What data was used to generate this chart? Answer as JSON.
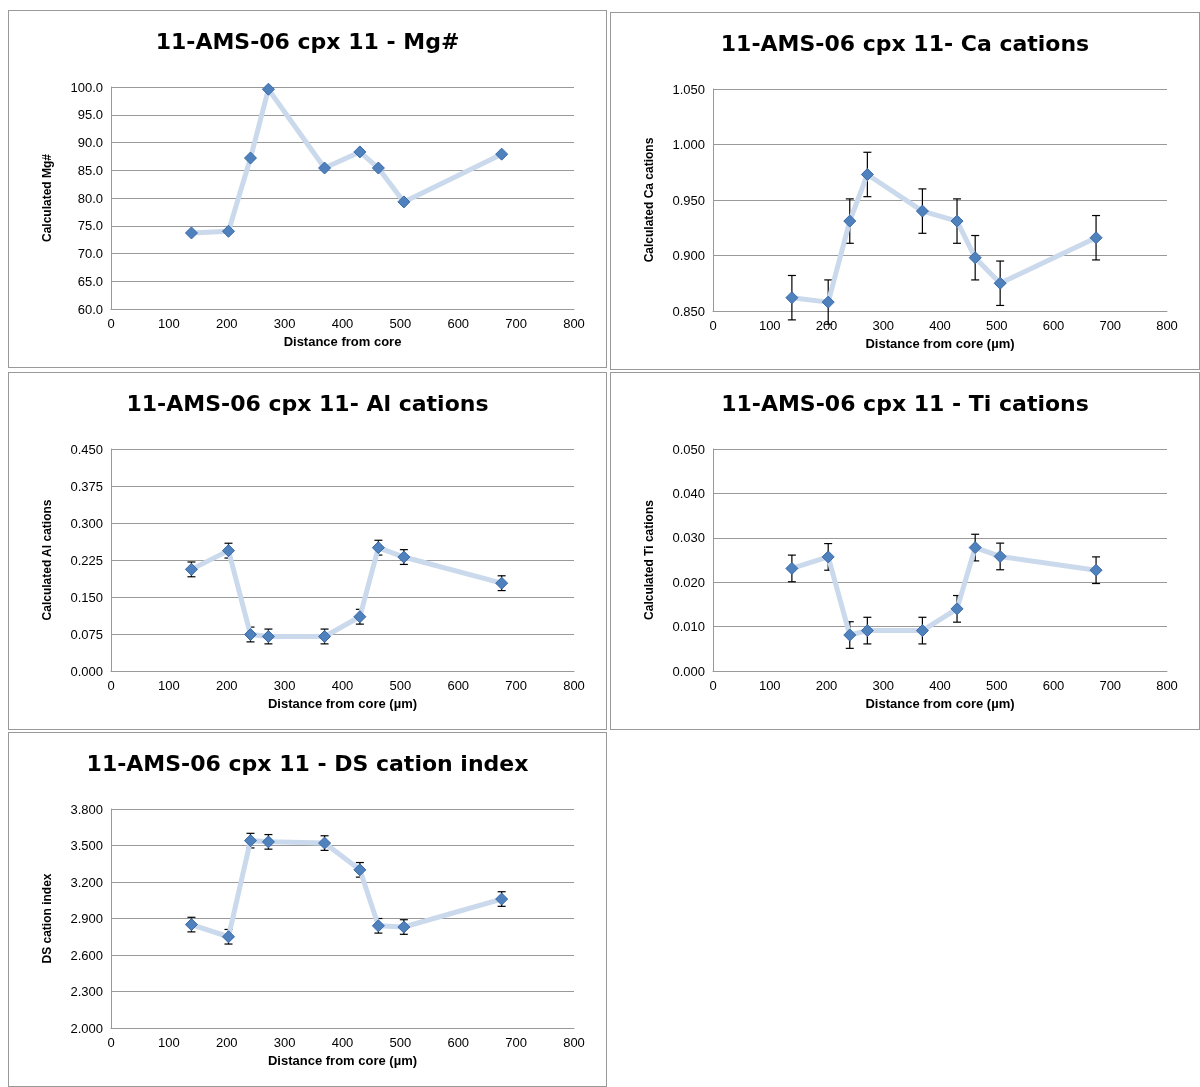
{
  "chart_data": [
    {
      "type": "line",
      "title": "11-AMS-06 cpx 11 - Mg#",
      "xlabel": "Distance from core",
      "ylabel": "Calculated Mg#",
      "x": [
        139,
        203,
        241,
        272,
        369,
        430,
        462,
        506,
        675
      ],
      "series": [
        {
          "color": "#4f81bd",
          "values": [
            73.7,
            74.0,
            87.2,
            99.6,
            85.4,
            88.3,
            85.4,
            79.3,
            87.9
          ]
        }
      ],
      "xlim": [
        0,
        800
      ],
      "xticks": [
        0,
        100,
        200,
        300,
        400,
        500,
        600,
        700,
        800
      ],
      "ylim": [
        60,
        100
      ],
      "yticks": [
        {
          "value": 60,
          "label": "60.0"
        },
        {
          "value": 65,
          "label": "65.0"
        },
        {
          "value": 70,
          "label": "70.0"
        },
        {
          "value": 75,
          "label": "75.0"
        },
        {
          "value": 80,
          "label": "80.0"
        },
        {
          "value": 85,
          "label": "85.0"
        },
        {
          "value": 90,
          "label": "90.0"
        },
        {
          "value": 95,
          "label": "95.0"
        },
        {
          "value": 100,
          "label": "100.0"
        }
      ],
      "grid": "y",
      "marker": "diamond"
    },
    {
      "type": "line",
      "title": "11-AMS-06 cpx 11- Ca cations",
      "xlabel": "Distance from core (µm)",
      "ylabel": "Calculated Ca cations",
      "x": [
        139,
        203,
        241,
        272,
        369,
        430,
        462,
        506,
        675
      ],
      "series": [
        {
          "color": "#4f81bd",
          "values": [
            0.862,
            0.858,
            0.931,
            0.973,
            0.94,
            0.931,
            0.898,
            0.875,
            0.916
          ],
          "errors": [
            0.02,
            0.02,
            0.02,
            0.02,
            0.02,
            0.02,
            0.02,
            0.02,
            0.02
          ]
        }
      ],
      "xlim": [
        0,
        800
      ],
      "xticks": [
        0,
        100,
        200,
        300,
        400,
        500,
        600,
        700,
        800
      ],
      "ylim": [
        0.85,
        1.05
      ],
      "yticks": [
        {
          "value": 0.85,
          "label": "0.850"
        },
        {
          "value": 0.9,
          "label": "0.900"
        },
        {
          "value": 0.95,
          "label": "0.950"
        },
        {
          "value": 1.0,
          "label": "1.000"
        },
        {
          "value": 1.05,
          "label": "1.050"
        }
      ],
      "grid": "y",
      "marker": "diamond"
    },
    {
      "type": "line",
      "title": "11-AMS-06 cpx 11- Al cations",
      "xlabel": "Distance from core (µm)",
      "ylabel": "Calculated Al cations",
      "x": [
        139,
        203,
        241,
        272,
        369,
        430,
        462,
        506,
        675
      ],
      "series": [
        {
          "color": "#4f81bd",
          "values": [
            0.206,
            0.244,
            0.074,
            0.07,
            0.07,
            0.11,
            0.25,
            0.231,
            0.178
          ],
          "errors": [
            0.015,
            0.015,
            0.015,
            0.015,
            0.015,
            0.015,
            0.015,
            0.015,
            0.015
          ]
        }
      ],
      "xlim": [
        0,
        800
      ],
      "xticks": [
        0,
        100,
        200,
        300,
        400,
        500,
        600,
        700,
        800
      ],
      "ylim": [
        0,
        0.45
      ],
      "yticks": [
        {
          "value": 0,
          "label": "0.000"
        },
        {
          "value": 0.075,
          "label": "0.075"
        },
        {
          "value": 0.15,
          "label": "0.150"
        },
        {
          "value": 0.225,
          "label": "0.225"
        },
        {
          "value": 0.3,
          "label": "0.300"
        },
        {
          "value": 0.375,
          "label": "0.375"
        },
        {
          "value": 0.45,
          "label": "0.450"
        }
      ],
      "grid": "y",
      "marker": "diamond"
    },
    {
      "type": "line",
      "title": "11-AMS-06 cpx 11 - Ti cations",
      "xlabel": "Distance from core (µm)",
      "ylabel": "Calculated Ti cations",
      "x": [
        139,
        203,
        241,
        272,
        369,
        430,
        462,
        506,
        675
      ],
      "series": [
        {
          "color": "#4f81bd",
          "values": [
            0.0231,
            0.0257,
            0.0081,
            0.0091,
            0.0091,
            0.014,
            0.0278,
            0.0258,
            0.0227
          ],
          "errors": [
            0.003,
            0.003,
            0.003,
            0.003,
            0.003,
            0.003,
            0.003,
            0.003,
            0.003
          ]
        }
      ],
      "xlim": [
        0,
        800
      ],
      "xticks": [
        0,
        100,
        200,
        300,
        400,
        500,
        600,
        700,
        800
      ],
      "ylim": [
        0,
        0.05
      ],
      "yticks": [
        {
          "value": 0,
          "label": "0.000"
        },
        {
          "value": 0.01,
          "label": "0.010"
        },
        {
          "value": 0.02,
          "label": "0.020"
        },
        {
          "value": 0.03,
          "label": "0.030"
        },
        {
          "value": 0.04,
          "label": "0.040"
        },
        {
          "value": 0.05,
          "label": "0.050"
        }
      ],
      "grid": "y",
      "marker": "diamond"
    },
    {
      "type": "line",
      "title": "11-AMS-06 cpx 11 - DS cation index",
      "xlabel": "Distance from core (µm)",
      "ylabel": "DS cation index",
      "x": [
        139,
        203,
        241,
        272,
        369,
        430,
        462,
        506,
        675
      ],
      "series": [
        {
          "color": "#4f81bd",
          "values": [
            2.85,
            2.75,
            3.54,
            3.53,
            3.52,
            3.3,
            2.84,
            2.83,
            3.06
          ],
          "errors": [
            0.06,
            0.06,
            0.06,
            0.06,
            0.06,
            0.06,
            0.06,
            0.06,
            0.06
          ]
        }
      ],
      "xlim": [
        0,
        800
      ],
      "xticks": [
        0,
        100,
        200,
        300,
        400,
        500,
        600,
        700,
        800
      ],
      "ylim": [
        2.0,
        3.8
      ],
      "yticks": [
        {
          "value": 2.0,
          "label": "2.000"
        },
        {
          "value": 2.3,
          "label": "2.300"
        },
        {
          "value": 2.6,
          "label": "2.600"
        },
        {
          "value": 2.9,
          "label": "2.900"
        },
        {
          "value": 3.2,
          "label": "3.200"
        },
        {
          "value": 3.5,
          "label": "3.500"
        },
        {
          "value": 3.8,
          "label": "3.800"
        }
      ],
      "grid": "y",
      "marker": "diamond"
    }
  ]
}
